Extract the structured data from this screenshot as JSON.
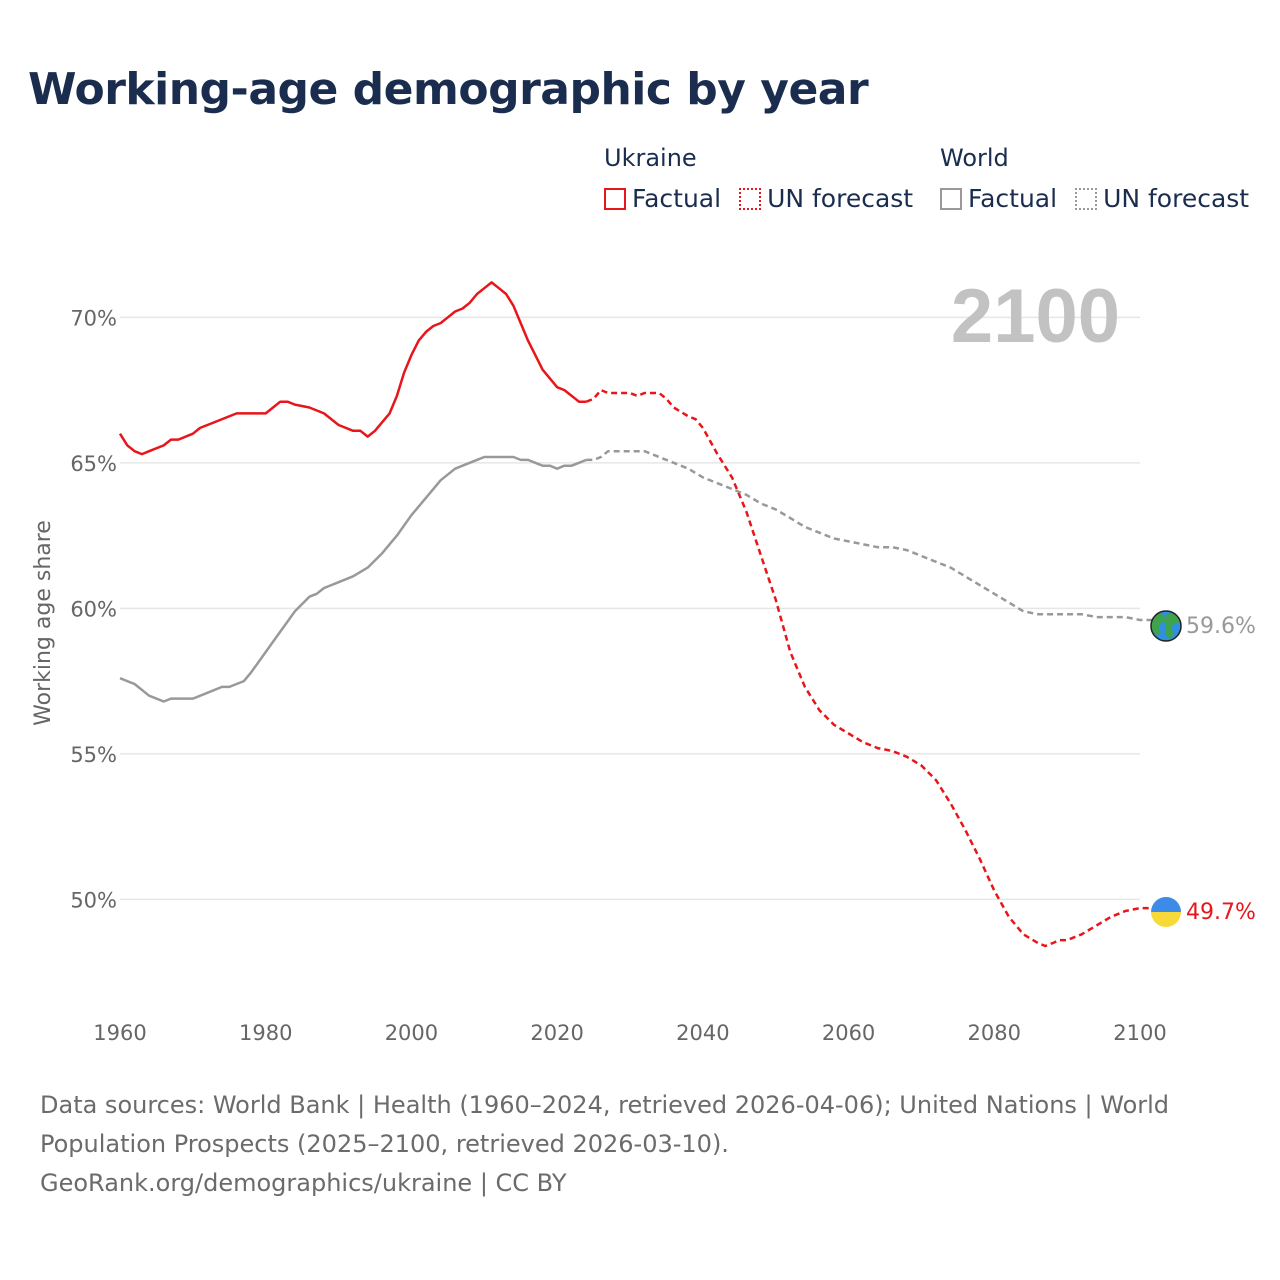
{
  "title": "Working-age demographic by year",
  "legend": {
    "ukraine": {
      "name": "Ukraine",
      "factual": "Factual",
      "forecast": "UN forecast",
      "color": "#e8161b"
    },
    "world": {
      "name": "World",
      "factual": "Factual",
      "forecast": "UN forecast",
      "color": "#999999"
    }
  },
  "footer": {
    "sources": "Data sources: World Bank | Health (1960–2024, retrieved 2026-04-06); United Nations | World Population Prospects (2025–2100, retrieved 2026-03-10).",
    "credit": "GeoRank.org/demographics/ukraine | CC BY"
  },
  "chart_data": {
    "type": "line",
    "year_label": "2100",
    "ylabel": "Working age share",
    "xlim": [
      1960,
      2100
    ],
    "ylim": [
      46.2,
      73
    ],
    "xticks": [
      1960,
      1980,
      2000,
      2020,
      2040,
      2060,
      2080,
      2100
    ],
    "xtick_labels": [
      "1960",
      "1980",
      "2000",
      "2020",
      "2040",
      "2060",
      "2080",
      "2100"
    ],
    "yticks": [
      50,
      55,
      60,
      65,
      70
    ],
    "ytick_labels": [
      "50%",
      "55%",
      "60%",
      "65%",
      "70%"
    ],
    "end_labels": {
      "ukraine": "49.7%",
      "world": "59.6%"
    },
    "series": [
      {
        "name": "Ukraine Factual",
        "style": "solid",
        "color": "#e8161b",
        "x": [
          1960,
          1961,
          1962,
          1963,
          1964,
          1966,
          1967,
          1968,
          1970,
          1971,
          1973,
          1976,
          1980,
          1982,
          1983,
          1984,
          1986,
          1988,
          1990,
          1992,
          1993,
          1994,
          1995,
          1996,
          1997,
          1998,
          1999,
          2000,
          2001,
          2002,
          2003,
          2004,
          2005,
          2006,
          2007,
          2008,
          2009,
          2010,
          2011,
          2012,
          2013,
          2014,
          2015,
          2016,
          2017,
          2018,
          2019,
          2020,
          2021,
          2022,
          2023,
          2024
        ],
        "y": [
          66.0,
          65.6,
          65.4,
          65.3,
          65.4,
          65.6,
          65.8,
          65.8,
          66.0,
          66.2,
          66.4,
          66.7,
          66.7,
          67.1,
          67.1,
          67.0,
          66.9,
          66.7,
          66.3,
          66.1,
          66.1,
          65.9,
          66.1,
          66.4,
          66.7,
          67.3,
          68.1,
          68.7,
          69.2,
          69.5,
          69.7,
          69.8,
          70.0,
          70.2,
          70.3,
          70.5,
          70.8,
          71.0,
          71.2,
          71.0,
          70.8,
          70.4,
          69.8,
          69.2,
          68.7,
          68.2,
          67.9,
          67.6,
          67.5,
          67.3,
          67.1,
          67.1
        ]
      },
      {
        "name": "Ukraine UN forecast",
        "style": "dashed",
        "color": "#e8161b",
        "x": [
          2024,
          2025,
          2026,
          2027,
          2030,
          2031,
          2032,
          2034,
          2035,
          2036,
          2038,
          2039,
          2040,
          2042,
          2044,
          2046,
          2048,
          2050,
          2052,
          2054,
          2056,
          2058,
          2060,
          2062,
          2064,
          2066,
          2068,
          2070,
          2072,
          2074,
          2076,
          2078,
          2080,
          2082,
          2084,
          2086,
          2087,
          2088,
          2089,
          2090,
          2091,
          2092,
          2094,
          2096,
          2098,
          2100,
          2102
        ],
        "y": [
          67.1,
          67.2,
          67.5,
          67.4,
          67.4,
          67.3,
          67.4,
          67.4,
          67.2,
          66.9,
          66.6,
          66.5,
          66.2,
          65.3,
          64.5,
          63.3,
          61.8,
          60.3,
          58.5,
          57.3,
          56.5,
          56.0,
          55.7,
          55.4,
          55.2,
          55.1,
          54.9,
          54.6,
          54.1,
          53.3,
          52.4,
          51.4,
          50.3,
          49.4,
          48.8,
          48.5,
          48.4,
          48.5,
          48.6,
          48.6,
          48.7,
          48.8,
          49.1,
          49.4,
          49.6,
          49.7,
          49.7
        ]
      },
      {
        "name": "World Factual",
        "style": "solid",
        "color": "#999999",
        "x": [
          1960,
          1961,
          1962,
          1964,
          1966,
          1967,
          1968,
          1970,
          1972,
          1974,
          1975,
          1976,
          1977,
          1978,
          1980,
          1982,
          1984,
          1986,
          1987,
          1988,
          1989,
          1990,
          1992,
          1994,
          1996,
          1998,
          2000,
          2002,
          2004,
          2006,
          2008,
          2010,
          2012,
          2014,
          2015,
          2016,
          2017,
          2018,
          2019,
          2020,
          2021,
          2022,
          2023,
          2024
        ],
        "y": [
          57.6,
          57.5,
          57.4,
          57.0,
          56.8,
          56.9,
          56.9,
          56.9,
          57.1,
          57.3,
          57.3,
          57.4,
          57.5,
          57.8,
          58.5,
          59.2,
          59.9,
          60.4,
          60.5,
          60.7,
          60.8,
          60.9,
          61.1,
          61.4,
          61.9,
          62.5,
          63.2,
          63.8,
          64.4,
          64.8,
          65.0,
          65.2,
          65.2,
          65.2,
          65.1,
          65.1,
          65.0,
          64.9,
          64.9,
          64.8,
          64.9,
          64.9,
          65.0,
          65.1
        ]
      },
      {
        "name": "World UN forecast",
        "style": "dashed",
        "color": "#999999",
        "x": [
          2024,
          2025,
          2026,
          2027,
          2030,
          2032,
          2034,
          2036,
          2038,
          2040,
          2042,
          2044,
          2046,
          2048,
          2050,
          2052,
          2054,
          2056,
          2058,
          2060,
          2062,
          2064,
          2066,
          2068,
          2070,
          2072,
          2074,
          2076,
          2078,
          2080,
          2082,
          2084,
          2086,
          2088,
          2090,
          2092,
          2094,
          2096,
          2098,
          2100,
          2102
        ],
        "y": [
          65.1,
          65.1,
          65.2,
          65.4,
          65.4,
          65.4,
          65.2,
          65.0,
          64.8,
          64.5,
          64.3,
          64.1,
          63.9,
          63.6,
          63.4,
          63.1,
          62.8,
          62.6,
          62.4,
          62.3,
          62.2,
          62.1,
          62.1,
          62.0,
          61.8,
          61.6,
          61.4,
          61.1,
          60.8,
          60.5,
          60.2,
          59.9,
          59.8,
          59.8,
          59.8,
          59.8,
          59.7,
          59.7,
          59.7,
          59.6,
          59.6
        ]
      }
    ]
  }
}
